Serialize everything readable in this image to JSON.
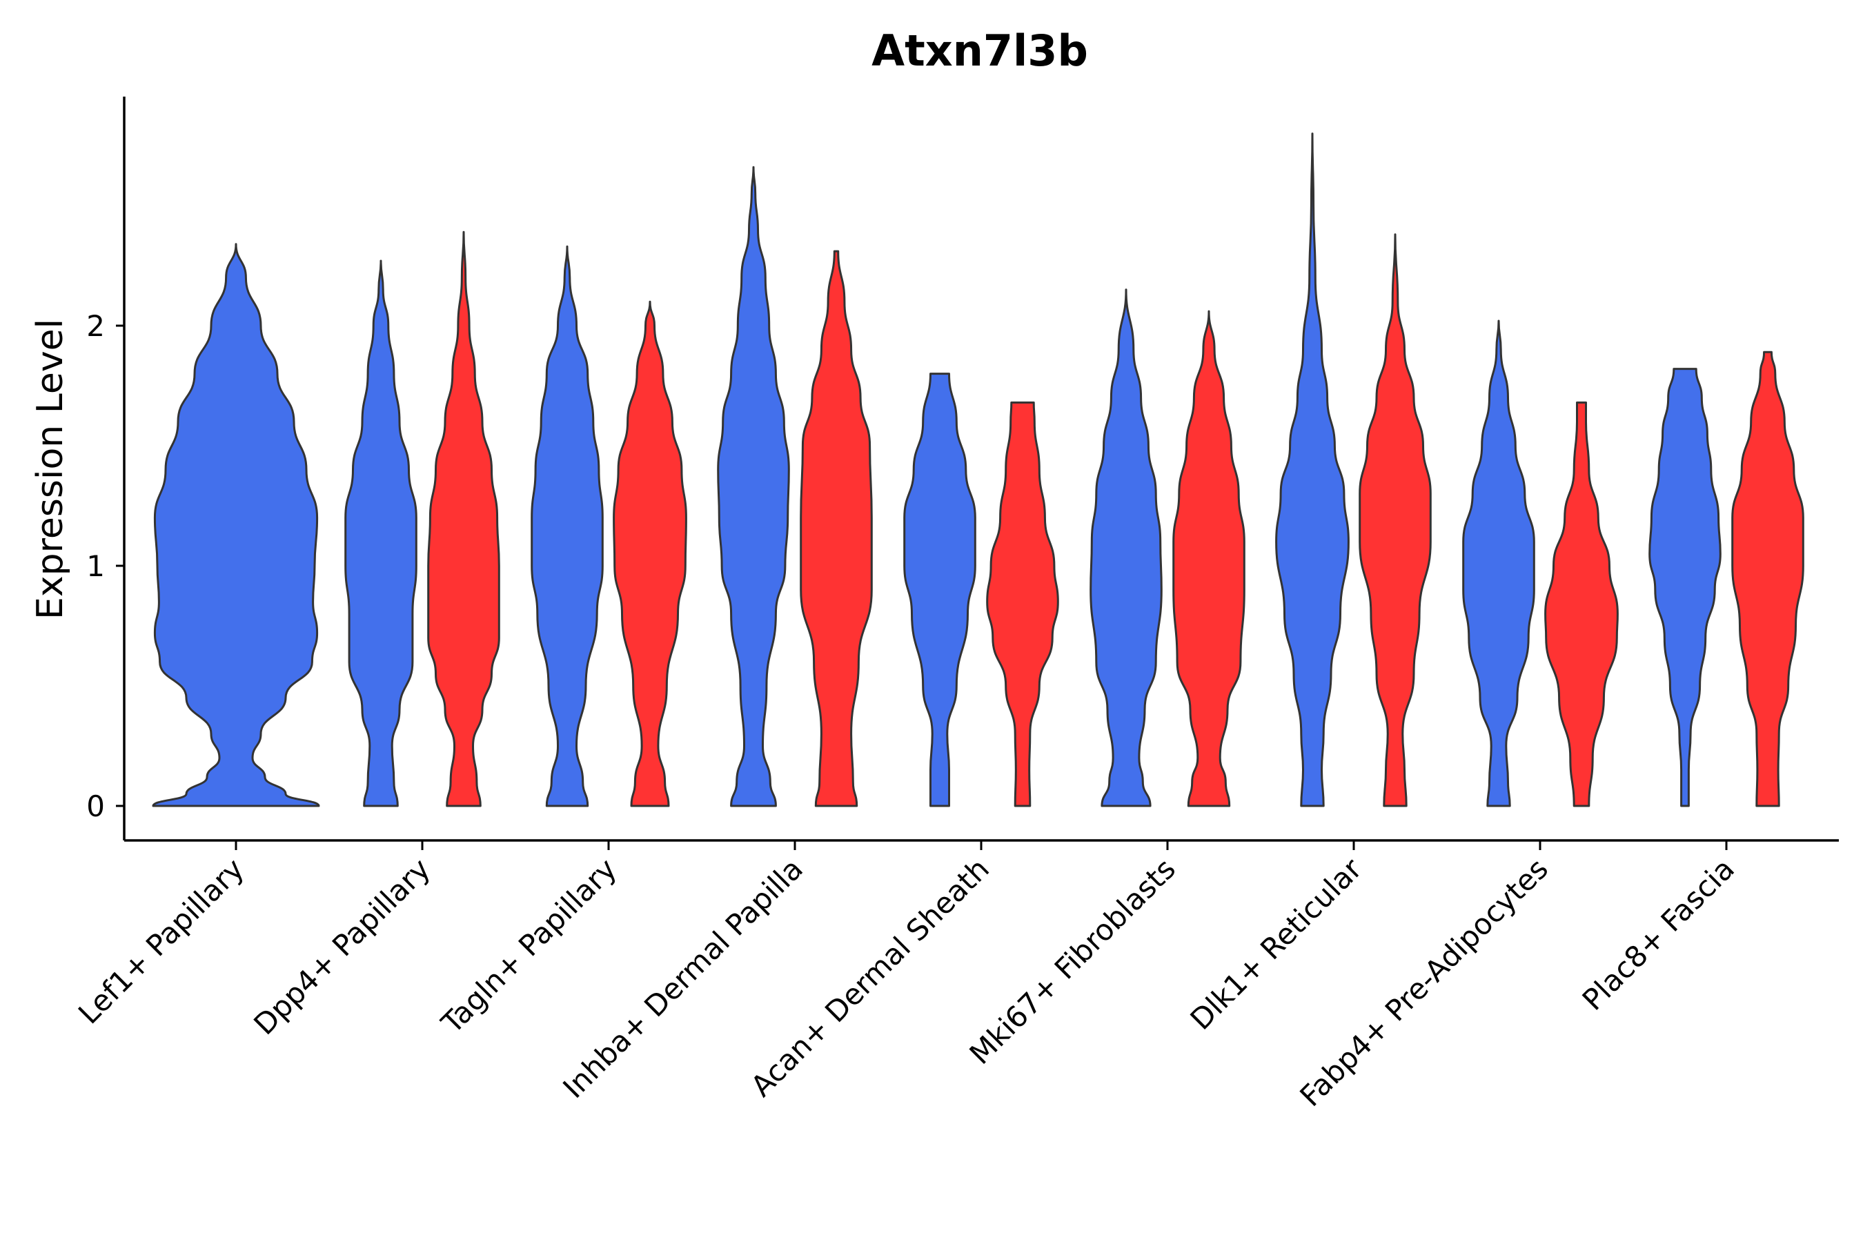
{
  "chart_data": {
    "type": "violin",
    "title": "Atxn7l3b",
    "xlabel": "",
    "ylabel": "Expression Level",
    "ylim": [
      -0.14,
      2.98
    ],
    "yticks": [
      0,
      1,
      2
    ],
    "legend": "none",
    "grid": false,
    "colors": {
      "group1": "#4370EC",
      "group2": "#FF3333"
    },
    "categories": [
      "Lef1+ Papillary",
      "Dpp4+ Papillary",
      "Tagln+ Papillary",
      "Inhba+ Dermal Papilla",
      "Acan+ Dermal Sheath",
      "Mki67+ Fibroblasts",
      "Dlk1+ Reticular",
      "Fabp4+ Pre-Adipocytes",
      "Plac8+ Fascia"
    ],
    "violins": [
      {
        "category": "Lef1+ Papillary",
        "group": "group1",
        "max": 2.34,
        "profile": [
          [
            0,
            1.0
          ],
          [
            0.05,
            0.6
          ],
          [
            0.12,
            0.35
          ],
          [
            0.2,
            0.2
          ],
          [
            0.3,
            0.3
          ],
          [
            0.45,
            0.6
          ],
          [
            0.6,
            0.92
          ],
          [
            0.72,
            0.98
          ],
          [
            0.85,
            0.93
          ],
          [
            1.0,
            0.95
          ],
          [
            1.2,
            0.98
          ],
          [
            1.4,
            0.85
          ],
          [
            1.6,
            0.7
          ],
          [
            1.8,
            0.5
          ],
          [
            2.0,
            0.3
          ],
          [
            2.2,
            0.12
          ],
          [
            2.34,
            0.0
          ]
        ]
      },
      {
        "category": "Dpp4+ Papillary",
        "group": "group1",
        "max": 2.27,
        "profile": [
          [
            0,
            0.45
          ],
          [
            0.1,
            0.35
          ],
          [
            0.25,
            0.3
          ],
          [
            0.4,
            0.5
          ],
          [
            0.6,
            0.85
          ],
          [
            0.8,
            0.85
          ],
          [
            1.0,
            0.95
          ],
          [
            1.2,
            0.95
          ],
          [
            1.4,
            0.75
          ],
          [
            1.6,
            0.5
          ],
          [
            1.8,
            0.35
          ],
          [
            2.0,
            0.2
          ],
          [
            2.15,
            0.06
          ],
          [
            2.27,
            0.0
          ]
        ]
      },
      {
        "category": "Dpp4+ Papillary",
        "group": "group2",
        "max": 2.39,
        "profile": [
          [
            0,
            0.45
          ],
          [
            0.1,
            0.35
          ],
          [
            0.25,
            0.25
          ],
          [
            0.4,
            0.5
          ],
          [
            0.55,
            0.75
          ],
          [
            0.7,
            0.95
          ],
          [
            0.9,
            0.95
          ],
          [
            1.0,
            0.95
          ],
          [
            1.2,
            0.9
          ],
          [
            1.4,
            0.75
          ],
          [
            1.6,
            0.5
          ],
          [
            1.8,
            0.3
          ],
          [
            2.0,
            0.15
          ],
          [
            2.2,
            0.05
          ],
          [
            2.39,
            0.0
          ]
        ]
      },
      {
        "category": "Tagln+ Papillary",
        "group": "group1",
        "max": 2.33,
        "profile": [
          [
            0,
            0.55
          ],
          [
            0.1,
            0.42
          ],
          [
            0.25,
            0.25
          ],
          [
            0.5,
            0.5
          ],
          [
            0.8,
            0.8
          ],
          [
            1.0,
            0.95
          ],
          [
            1.2,
            0.95
          ],
          [
            1.4,
            0.85
          ],
          [
            1.6,
            0.7
          ],
          [
            1.8,
            0.55
          ],
          [
            2.0,
            0.25
          ],
          [
            2.2,
            0.07
          ],
          [
            2.33,
            0.0
          ]
        ]
      },
      {
        "category": "Tagln+ Papillary",
        "group": "group2",
        "max": 2.1,
        "profile": [
          [
            0,
            0.5
          ],
          [
            0.1,
            0.4
          ],
          [
            0.25,
            0.22
          ],
          [
            0.5,
            0.45
          ],
          [
            0.8,
            0.75
          ],
          [
            1.0,
            0.95
          ],
          [
            1.2,
            0.97
          ],
          [
            1.4,
            0.85
          ],
          [
            1.6,
            0.6
          ],
          [
            1.8,
            0.35
          ],
          [
            2.0,
            0.12
          ],
          [
            2.1,
            0.0
          ]
        ]
      },
      {
        "category": "Inhba+ Dermal Papilla",
        "group": "group1",
        "max": 2.66,
        "profile": [
          [
            0,
            0.6
          ],
          [
            0.1,
            0.45
          ],
          [
            0.25,
            0.25
          ],
          [
            0.5,
            0.35
          ],
          [
            0.8,
            0.6
          ],
          [
            1.0,
            0.85
          ],
          [
            1.2,
            0.92
          ],
          [
            1.4,
            0.95
          ],
          [
            1.6,
            0.82
          ],
          [
            1.8,
            0.6
          ],
          [
            2.0,
            0.42
          ],
          [
            2.2,
            0.32
          ],
          [
            2.4,
            0.12
          ],
          [
            2.55,
            0.05
          ],
          [
            2.66,
            0.0
          ]
        ]
      },
      {
        "category": "Inhba+ Dermal Papilla",
        "group": "group2",
        "max": 2.31,
        "profile": [
          [
            0,
            0.55
          ],
          [
            0.1,
            0.45
          ],
          [
            0.3,
            0.4
          ],
          [
            0.6,
            0.6
          ],
          [
            0.9,
            0.95
          ],
          [
            1.2,
            0.95
          ],
          [
            1.5,
            0.9
          ],
          [
            1.7,
            0.65
          ],
          [
            1.9,
            0.4
          ],
          [
            2.1,
            0.22
          ],
          [
            2.31,
            0.05
          ]
        ]
      },
      {
        "category": "Acan+ Dermal Sheath",
        "group": "group1",
        "max": 1.8,
        "profile": [
          [
            0,
            0.25
          ],
          [
            0.15,
            0.25
          ],
          [
            0.3,
            0.2
          ],
          [
            0.5,
            0.45
          ],
          [
            0.8,
            0.75
          ],
          [
            1.0,
            0.95
          ],
          [
            1.2,
            0.95
          ],
          [
            1.4,
            0.7
          ],
          [
            1.6,
            0.45
          ],
          [
            1.8,
            0.25
          ]
        ]
      },
      {
        "category": "Acan+ Dermal Sheath",
        "group": "group2",
        "max": 1.68,
        "profile": [
          [
            0,
            0.2
          ],
          [
            0.15,
            0.18
          ],
          [
            0.3,
            0.2
          ],
          [
            0.5,
            0.45
          ],
          [
            0.7,
            0.8
          ],
          [
            0.85,
            0.95
          ],
          [
            1.0,
            0.85
          ],
          [
            1.2,
            0.6
          ],
          [
            1.4,
            0.45
          ],
          [
            1.6,
            0.32
          ],
          [
            1.68,
            0.3
          ]
        ]
      },
      {
        "category": "Mki67+ Fibroblasts",
        "group": "group1",
        "max": 2.15,
        "profile": [
          [
            0,
            0.65
          ],
          [
            0.1,
            0.45
          ],
          [
            0.2,
            0.35
          ],
          [
            0.4,
            0.5
          ],
          [
            0.6,
            0.8
          ],
          [
            0.9,
            0.95
          ],
          [
            1.1,
            0.92
          ],
          [
            1.3,
            0.8
          ],
          [
            1.5,
            0.6
          ],
          [
            1.7,
            0.4
          ],
          [
            1.9,
            0.2
          ],
          [
            2.15,
            0.0
          ]
        ]
      },
      {
        "category": "Mki67+ Fibroblasts",
        "group": "group2",
        "max": 2.06,
        "profile": [
          [
            0,
            0.55
          ],
          [
            0.1,
            0.45
          ],
          [
            0.2,
            0.3
          ],
          [
            0.4,
            0.5
          ],
          [
            0.6,
            0.85
          ],
          [
            0.9,
            0.95
          ],
          [
            1.1,
            0.95
          ],
          [
            1.3,
            0.8
          ],
          [
            1.5,
            0.6
          ],
          [
            1.7,
            0.4
          ],
          [
            1.9,
            0.15
          ],
          [
            2.06,
            0.0
          ]
        ]
      },
      {
        "category": "Dlk1+ Reticular",
        "group": "group1",
        "max": 2.8,
        "profile": [
          [
            0,
            0.3
          ],
          [
            0.15,
            0.25
          ],
          [
            0.3,
            0.3
          ],
          [
            0.55,
            0.5
          ],
          [
            0.8,
            0.75
          ],
          [
            1.1,
            0.97
          ],
          [
            1.3,
            0.85
          ],
          [
            1.5,
            0.6
          ],
          [
            1.7,
            0.4
          ],
          [
            1.9,
            0.25
          ],
          [
            2.2,
            0.08
          ],
          [
            2.5,
            0.03
          ],
          [
            2.8,
            0.0
          ]
        ]
      },
      {
        "category": "Dlk1+ Reticular",
        "group": "group2",
        "max": 2.38,
        "profile": [
          [
            0,
            0.3
          ],
          [
            0.15,
            0.25
          ],
          [
            0.3,
            0.2
          ],
          [
            0.55,
            0.5
          ],
          [
            0.8,
            0.65
          ],
          [
            1.1,
            0.95
          ],
          [
            1.3,
            0.95
          ],
          [
            1.5,
            0.75
          ],
          [
            1.7,
            0.5
          ],
          [
            1.9,
            0.25
          ],
          [
            2.1,
            0.07
          ],
          [
            2.38,
            0.0
          ]
        ]
      },
      {
        "category": "Fabp4+ Pre-Adipocytes",
        "group": "group1",
        "max": 2.02,
        "profile": [
          [
            0,
            0.3
          ],
          [
            0.1,
            0.25
          ],
          [
            0.25,
            0.2
          ],
          [
            0.45,
            0.5
          ],
          [
            0.7,
            0.8
          ],
          [
            0.9,
            0.95
          ],
          [
            1.1,
            0.95
          ],
          [
            1.3,
            0.7
          ],
          [
            1.5,
            0.45
          ],
          [
            1.7,
            0.25
          ],
          [
            1.9,
            0.06
          ],
          [
            2.02,
            0.0
          ]
        ]
      },
      {
        "category": "Fabp4+ Pre-Adipocytes",
        "group": "group2",
        "max": 1.68,
        "profile": [
          [
            0,
            0.2
          ],
          [
            0.2,
            0.3
          ],
          [
            0.45,
            0.6
          ],
          [
            0.7,
            0.95
          ],
          [
            0.8,
            0.97
          ],
          [
            1.0,
            0.75
          ],
          [
            1.2,
            0.45
          ],
          [
            1.4,
            0.2
          ],
          [
            1.6,
            0.12
          ],
          [
            1.68,
            0.12
          ]
        ]
      },
      {
        "category": "Plac8+ Fascia",
        "group": "group1",
        "max": 1.82,
        "profile": [
          [
            0,
            0.1
          ],
          [
            0.15,
            0.1
          ],
          [
            0.3,
            0.15
          ],
          [
            0.5,
            0.4
          ],
          [
            0.7,
            0.55
          ],
          [
            0.9,
            0.8
          ],
          [
            1.05,
            0.95
          ],
          [
            1.2,
            0.9
          ],
          [
            1.4,
            0.7
          ],
          [
            1.55,
            0.6
          ],
          [
            1.7,
            0.45
          ],
          [
            1.82,
            0.3
          ]
        ]
      },
      {
        "category": "Plac8+ Fascia",
        "group": "group2",
        "max": 1.89,
        "profile": [
          [
            0,
            0.3
          ],
          [
            0.15,
            0.28
          ],
          [
            0.3,
            0.3
          ],
          [
            0.5,
            0.55
          ],
          [
            0.75,
            0.75
          ],
          [
            1.0,
            0.95
          ],
          [
            1.2,
            0.95
          ],
          [
            1.4,
            0.7
          ],
          [
            1.6,
            0.45
          ],
          [
            1.8,
            0.2
          ],
          [
            1.89,
            0.1
          ]
        ]
      }
    ]
  }
}
